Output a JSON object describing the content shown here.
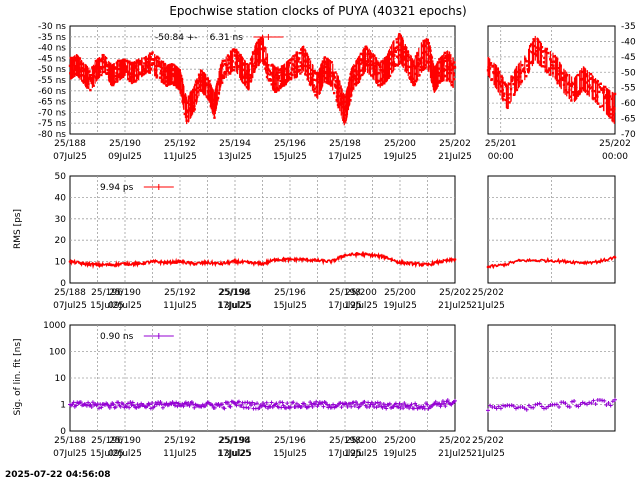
{
  "title": "Epochwise station clocks of PUYA (40321 epochs)",
  "timestamp": "2025-07-22 04:56:08",
  "colors": {
    "clock": "#ff0000",
    "rms": "#ff0000",
    "sig": "#9400d3",
    "grid": "#a0a0a0",
    "axis": "#000000"
  },
  "chart_data": [
    {
      "type": "scatter",
      "panel": "clock-main",
      "ylabel": "",
      "y_unit_suffix": " ns",
      "ylim": [
        -80,
        -30
      ],
      "yticks": [
        -30,
        -35,
        -40,
        -45,
        -50,
        -55,
        -60,
        -65,
        -70,
        -75,
        -80
      ],
      "xlim": [
        188,
        202
      ],
      "xticks": [
        {
          "doy": 188,
          "l1": "25/188",
          "l2": "07Jul25"
        },
        {
          "doy": 190,
          "l1": "25/190",
          "l2": "09Jul25"
        },
        {
          "doy": 192,
          "l1": "25/192",
          "l2": "11Jul25"
        },
        {
          "doy": 194,
          "l1": "25/194",
          "l2": "13Jul25"
        },
        {
          "doy": 196,
          "l1": "25/196",
          "l2": "15Jul25"
        },
        {
          "doy": 198,
          "l1": "25/198",
          "l2": "17Jul25"
        },
        {
          "doy": 200,
          "l1": "25/200",
          "l2": "19Jul25"
        },
        {
          "doy": 202,
          "l1": "25/202",
          "l2": "21Jul25"
        }
      ],
      "legend": [
        {
          "text": "-50.84 +-",
          "style": "none"
        },
        {
          "text": "6.31 ns",
          "style": "line-marker"
        }
      ],
      "series": [
        {
          "x": [
            188.0,
            188.25,
            188.5,
            188.75,
            189.0,
            189.25,
            189.5,
            189.75,
            190.0,
            190.25,
            190.5,
            190.75,
            191.0,
            191.25,
            191.5,
            191.75,
            192.0,
            192.25,
            192.5,
            192.75,
            193.0,
            193.25,
            193.5,
            193.75,
            194.0,
            194.25,
            194.5,
            194.75,
            195.0,
            195.25,
            195.5,
            195.75,
            196.0,
            196.25,
            196.5,
            196.75,
            197.0,
            197.25,
            197.5,
            197.75,
            198.0,
            198.25,
            198.5,
            198.75,
            199.0,
            199.25,
            199.5,
            199.75,
            200.0,
            200.25,
            200.5,
            200.75,
            201.0,
            201.25,
            201.5,
            201.75,
            202.0
          ],
          "y": [
            -50,
            -48,
            -52,
            -55,
            -50,
            -47,
            -53,
            -51,
            -49,
            -52,
            -50,
            -48,
            -47,
            -50,
            -53,
            -52,
            -55,
            -70,
            -64,
            -55,
            -58,
            -67,
            -52,
            -48,
            -45,
            -50,
            -54,
            -44,
            -40,
            -52,
            -55,
            -53,
            -50,
            -48,
            -45,
            -52,
            -58,
            -50,
            -52,
            -60,
            -70,
            -55,
            -50,
            -45,
            -48,
            -53,
            -50,
            -44,
            -40,
            -46,
            -52,
            -45,
            -42,
            -55,
            -50,
            -48,
            -53
          ],
          "spread": [
            5,
            5,
            5,
            5,
            5,
            4,
            5,
            5,
            4,
            5,
            5,
            4,
            5,
            5,
            5,
            5,
            5,
            6,
            6,
            5,
            5,
            6,
            5,
            5,
            5,
            6,
            6,
            6,
            6,
            6,
            6,
            5,
            5,
            6,
            6,
            6,
            6,
            6,
            6,
            7,
            7,
            6,
            6,
            6,
            6,
            6,
            6,
            7,
            7,
            6,
            6,
            7,
            7,
            6,
            6,
            7,
            7
          ]
        }
      ]
    },
    {
      "type": "scatter",
      "panel": "clock-side",
      "ylim": [
        -70,
        -35
      ],
      "yticks": [
        -35,
        -40,
        -45,
        -50,
        -55,
        -60,
        -65,
        -70
      ],
      "xlim": [
        202.0,
        204.0
      ],
      "xticks": [
        {
          "doy": 202.2,
          "l1": "25/201",
          "l2": "00:00"
        },
        {
          "doy": 204.0,
          "l1": "25/202",
          "l2": "00:00"
        }
      ],
      "series": [
        {
          "x": [
            202.0,
            202.15,
            202.3,
            202.45,
            202.6,
            202.75,
            202.9,
            203.05,
            203.2,
            203.35,
            203.5,
            203.65,
            203.8,
            204.0
          ],
          "y": [
            -48,
            -52,
            -58,
            -52,
            -48,
            -42,
            -46,
            -48,
            -53,
            -56,
            -52,
            -55,
            -58,
            -62
          ],
          "spread": [
            3,
            4,
            4,
            4,
            4,
            4,
            4,
            4,
            4,
            4,
            4,
            4,
            4,
            5
          ]
        }
      ]
    },
    {
      "type": "line",
      "panel": "rms-main",
      "ylabel": "RMS [ps]",
      "ylim": [
        0,
        50
      ],
      "yticks": [
        0,
        10,
        20,
        30,
        40,
        50
      ],
      "xlim": [
        188,
        202
      ],
      "legend": [
        {
          "text": "9.94 ps",
          "style": "line-marker"
        }
      ],
      "series": [
        {
          "x": [
            188.0,
            188.5,
            189.0,
            189.5,
            190.0,
            190.5,
            191.0,
            191.5,
            192.0,
            192.5,
            193.0,
            193.5,
            194.0,
            194.5,
            195.0,
            195.5,
            196.0,
            196.5,
            197.0,
            197.5,
            198.0,
            198.5,
            199.0,
            199.5,
            200.0,
            200.5,
            201.0,
            201.5,
            202.0
          ],
          "y": [
            10,
            9,
            8.5,
            8.5,
            9,
            9,
            10,
            9.5,
            10,
            9,
            9.5,
            9,
            10,
            9.5,
            9,
            11,
            11,
            11,
            10.5,
            10,
            13,
            13.5,
            13,
            12,
            9.5,
            9,
            8.5,
            10,
            11
          ]
        }
      ]
    },
    {
      "type": "line",
      "panel": "rms-side",
      "ylim": [
        0,
        50
      ],
      "xlim": [
        202.0,
        204.0
      ],
      "series": [
        {
          "x": [
            202.0,
            202.25,
            202.5,
            202.75,
            203.0,
            203.25,
            203.5,
            203.75,
            204.0
          ],
          "y": [
            7.5,
            8.5,
            10.5,
            10.5,
            10.5,
            10,
            9.5,
            10,
            12
          ]
        }
      ]
    },
    {
      "type": "scatter",
      "panel": "sig-main",
      "ylabel": "Sig. of lin. fit [ns]",
      "yscale": "log",
      "ylim": [
        0.1,
        1000
      ],
      "yticks": [
        {
          "v": 0.1,
          "l": "0"
        },
        {
          "v": 1,
          "l": "1"
        },
        {
          "v": 10,
          "l": "10"
        },
        {
          "v": 100,
          "l": "100"
        },
        {
          "v": 1000,
          "l": "1000"
        }
      ],
      "xlim": [
        188,
        202
      ],
      "legend": [
        {
          "text": "0.90 ns",
          "style": "line-marker"
        }
      ],
      "series": [
        {
          "x": [
            188.0,
            188.5,
            189.0,
            189.5,
            190.0,
            190.5,
            191.0,
            191.5,
            192.0,
            192.5,
            193.0,
            193.5,
            194.0,
            194.5,
            195.0,
            195.5,
            196.0,
            196.5,
            197.0,
            197.5,
            198.0,
            198.5,
            199.0,
            199.5,
            200.0,
            200.5,
            201.0,
            201.5,
            202.0
          ],
          "y": [
            0.9,
            1.0,
            0.9,
            0.95,
            1.0,
            0.9,
            0.95,
            1.0,
            0.9,
            1.0,
            0.95,
            0.9,
            1.05,
            0.95,
            0.9,
            1.0,
            0.95,
            0.9,
            1.0,
            0.95,
            0.9,
            1.0,
            0.95,
            0.9,
            0.9,
            0.85,
            0.9,
            1.1,
            1.2
          ]
        }
      ]
    },
    {
      "type": "scatter",
      "panel": "sig-side",
      "yscale": "log",
      "ylim": [
        0.1,
        1000
      ],
      "xlim": [
        202.0,
        204.0
      ],
      "series": [
        {
          "x": [
            202.0,
            202.25,
            202.5,
            202.75,
            203.0,
            203.25,
            203.5,
            203.75,
            204.0
          ],
          "y": [
            0.7,
            0.75,
            0.8,
            0.85,
            0.9,
            1.0,
            1.1,
            1.2,
            1.2
          ]
        }
      ]
    }
  ]
}
